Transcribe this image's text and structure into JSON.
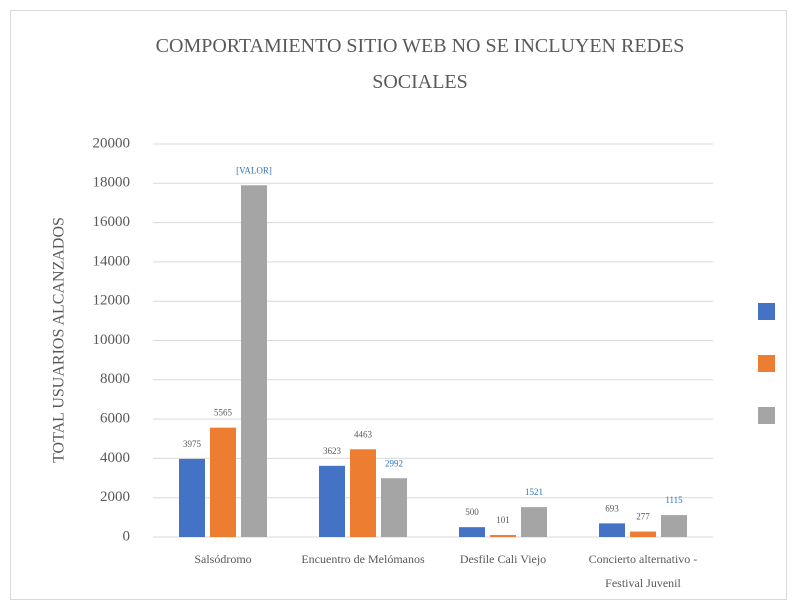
{
  "chart_data": {
    "type": "bar",
    "title": "COMPORTAMIENTO SITIO WEB NO SE INCLUYEN REDES SOCIALES",
    "ylabel": "TOTAL USUARIOS ALCANZADOS",
    "categories": [
      "Salsódromo",
      "Encuentro de Melómanos",
      "Desfile Cali Viejo",
      "Concierto alternativo - Festival Juvenil"
    ],
    "series": [
      {
        "color": "#4472c4",
        "values": [
          3975,
          3623,
          500,
          693
        ]
      },
      {
        "color": "#ed7d31",
        "values": [
          5565,
          4463,
          101,
          277
        ]
      },
      {
        "color": "#a5a5a5",
        "values": [
          17900,
          2992,
          1521,
          1115
        ],
        "value_labels": [
          "[VALOR]",
          "2992",
          "1521",
          "1115"
        ]
      }
    ],
    "ylim": [
      0,
      20000
    ],
    "yticks": [
      0,
      2000,
      4000,
      6000,
      8000,
      10000,
      12000,
      14000,
      16000,
      18000,
      20000
    ],
    "grid": true,
    "legend": "right"
  }
}
